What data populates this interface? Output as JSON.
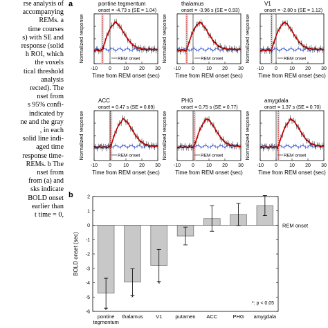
{
  "caption_lines": [
    "rse analysis of",
    "accompanying",
    "REMs. a",
    "time courses",
    "s) with SE and",
    "response (solid",
    "h ROI, which",
    "the voxels",
    "tical threshold",
    "analysis",
    "rected). The",
    "nset from",
    "s 95% confi-",
    "indicated by",
    "ne and the gray",
    ", in each",
    "solid line indi-",
    "aged time",
    "response time-",
    "REMs. b The",
    "nset from",
    "from (a) and",
    "sks indicate",
    "BOLD onset",
    "earlier than",
    "t time = 0,"
  ],
  "panel_a_label": "a",
  "panel_b_label": "b",
  "time_panels": [
    {
      "title": "pontine tegmentum",
      "onset": "onset = -4.73 s (SE = 1.04)"
    },
    {
      "title": "thalamus",
      "onset": "onset = -3.96 s (SE = 0.93)"
    },
    {
      "title": "V1",
      "onset": "onset = -2.80 s (SE = 1.12)"
    },
    {
      "title": "ACC",
      "onset": "onset = 0.47 s (SE = 0.89)"
    },
    {
      "title": "PHG",
      "onset": "onset = 0.75 s (SE = 0.77)"
    },
    {
      "title": "amygdala",
      "onset": "onset = 1.37 s (SE = 0.70)"
    }
  ],
  "time_axis": {
    "ylabel": "Normalized response",
    "xlabel": "Time from REM onset (sec)",
    "ticks": [
      "-10",
      "0",
      "10",
      "20",
      "30"
    ],
    "arrow_label": "REM onset"
  },
  "chart_data": {
    "type": "bar",
    "categories": [
      "pontine tegmentum",
      "thalamus",
      "V1",
      "putamen",
      "ACC",
      "PHG",
      "amygdala"
    ],
    "category_lines": [
      [
        "pontine",
        "tegmentum"
      ],
      [
        "thalamus"
      ],
      [
        "V1"
      ],
      [
        "putamen"
      ],
      [
        "ACC"
      ],
      [
        "PHG"
      ],
      [
        "amygdala"
      ]
    ],
    "values": [
      -4.73,
      -3.96,
      -2.8,
      -0.75,
      0.47,
      0.75,
      1.37
    ],
    "errors": [
      1.04,
      0.93,
      1.12,
      0.62,
      0.89,
      0.77,
      0.7
    ],
    "significant": [
      true,
      true,
      true,
      false,
      false,
      false,
      false
    ],
    "ylabel": "BOLD onset  (sec)",
    "ylim": [
      -6,
      2
    ],
    "yticks": [
      "2",
      "1",
      "0",
      "-1",
      "-2",
      "-3",
      "-4",
      "-5",
      "-6"
    ],
    "reference_label": "REM onset",
    "legend": "*: p < 0.05",
    "bar_color": "#c8c8c8"
  }
}
